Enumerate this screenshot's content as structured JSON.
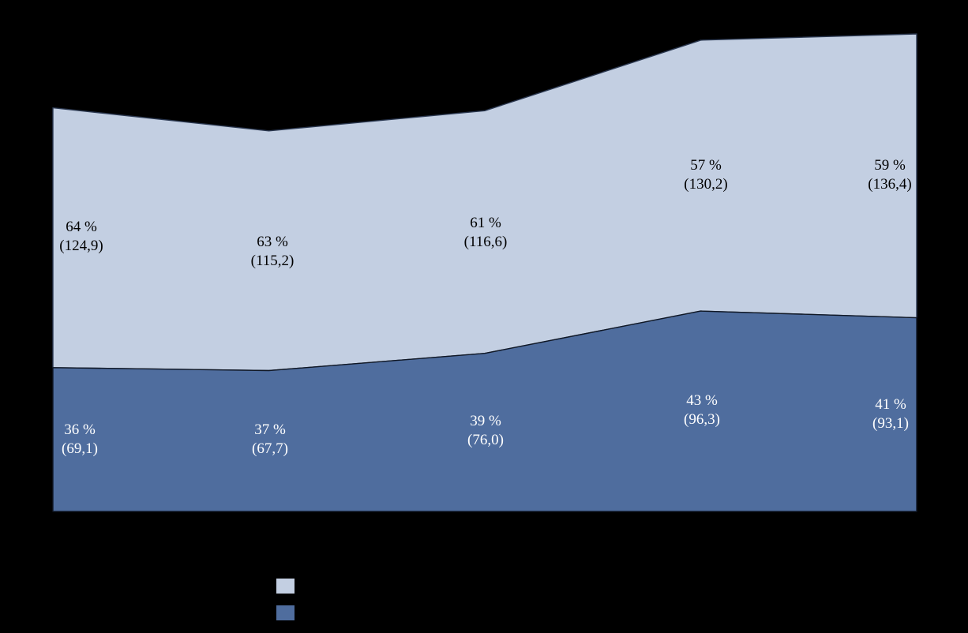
{
  "page": {
    "background_color": "#000000"
  },
  "chart_data": {
    "type": "area",
    "stacked": true,
    "x_point_count": 5,
    "grid": false,
    "axes_visible": false,
    "number_format": "decimal-comma",
    "series": [
      {
        "name": "upper-light-series",
        "color": "#C3CFE2",
        "outline_color": "#2B3850",
        "values": [
          124.9,
          115.2,
          116.6,
          130.2,
          136.4
        ],
        "percent_labels": [
          "64 %",
          "63 %",
          "61 %",
          "57 %",
          "59 %"
        ],
        "value_labels": [
          "(124,9)",
          "(115,2)",
          "(116,6)",
          "(130,2)",
          "(136,4)"
        ],
        "label_color": "#000000"
      },
      {
        "name": "lower-dark-series",
        "color": "#4F6D9E",
        "outline_color": "#101826",
        "values": [
          69.1,
          67.7,
          76.0,
          96.3,
          93.1
        ],
        "percent_labels": [
          "36 %",
          "37 %",
          "39 %",
          "43 %",
          "41 %"
        ],
        "value_labels": [
          "(69,1)",
          "(67,7)",
          "(76,0)",
          "(96,3)",
          "(93,1)"
        ],
        "label_color": "#FFFFFF"
      }
    ],
    "totals": [
      194.0,
      182.9,
      192.6,
      226.5,
      229.5
    ],
    "legend": {
      "position": "bottom",
      "entries": [
        {
          "swatch_color": "#C3CFE2",
          "label_visible": false
        },
        {
          "swatch_color": "#4F6D9E",
          "label_visible": false
        }
      ]
    }
  }
}
